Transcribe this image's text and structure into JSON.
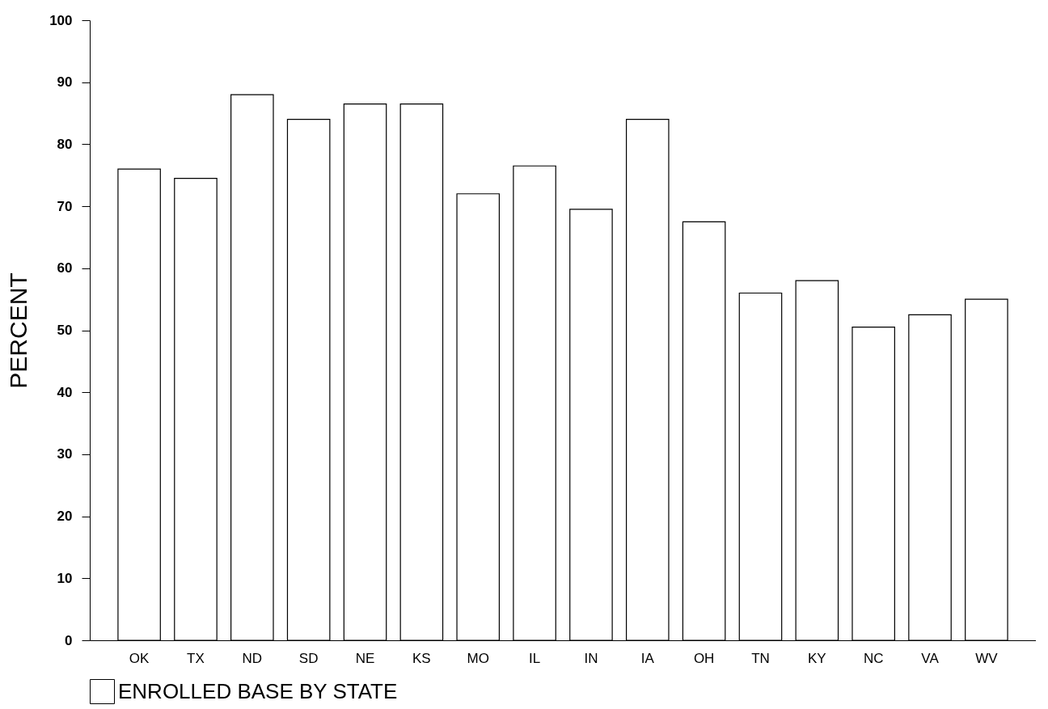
{
  "chart_data": {
    "type": "bar",
    "ylabel": "PERCENT",
    "categories": [
      "OK",
      "TX",
      "ND",
      "SD",
      "NE",
      "KS",
      "MO",
      "IL",
      "IN",
      "IA",
      "OH",
      "TN",
      "KY",
      "NC",
      "VA",
      "WV"
    ],
    "series": [
      {
        "name": "ENROLLED BASE BY STATE",
        "color": "#000000",
        "values": [
          76,
          74.5,
          88,
          84,
          86.5,
          86.5,
          72,
          76.5,
          69.5,
          84,
          67.5,
          56,
          58,
          50.5,
          52.5,
          55
        ]
      }
    ],
    "ylim": [
      0,
      100
    ],
    "yticks": [
      0,
      10,
      20,
      30,
      40,
      50,
      60,
      70,
      80,
      90,
      100
    ],
    "grid": false,
    "legend": "bottom"
  }
}
